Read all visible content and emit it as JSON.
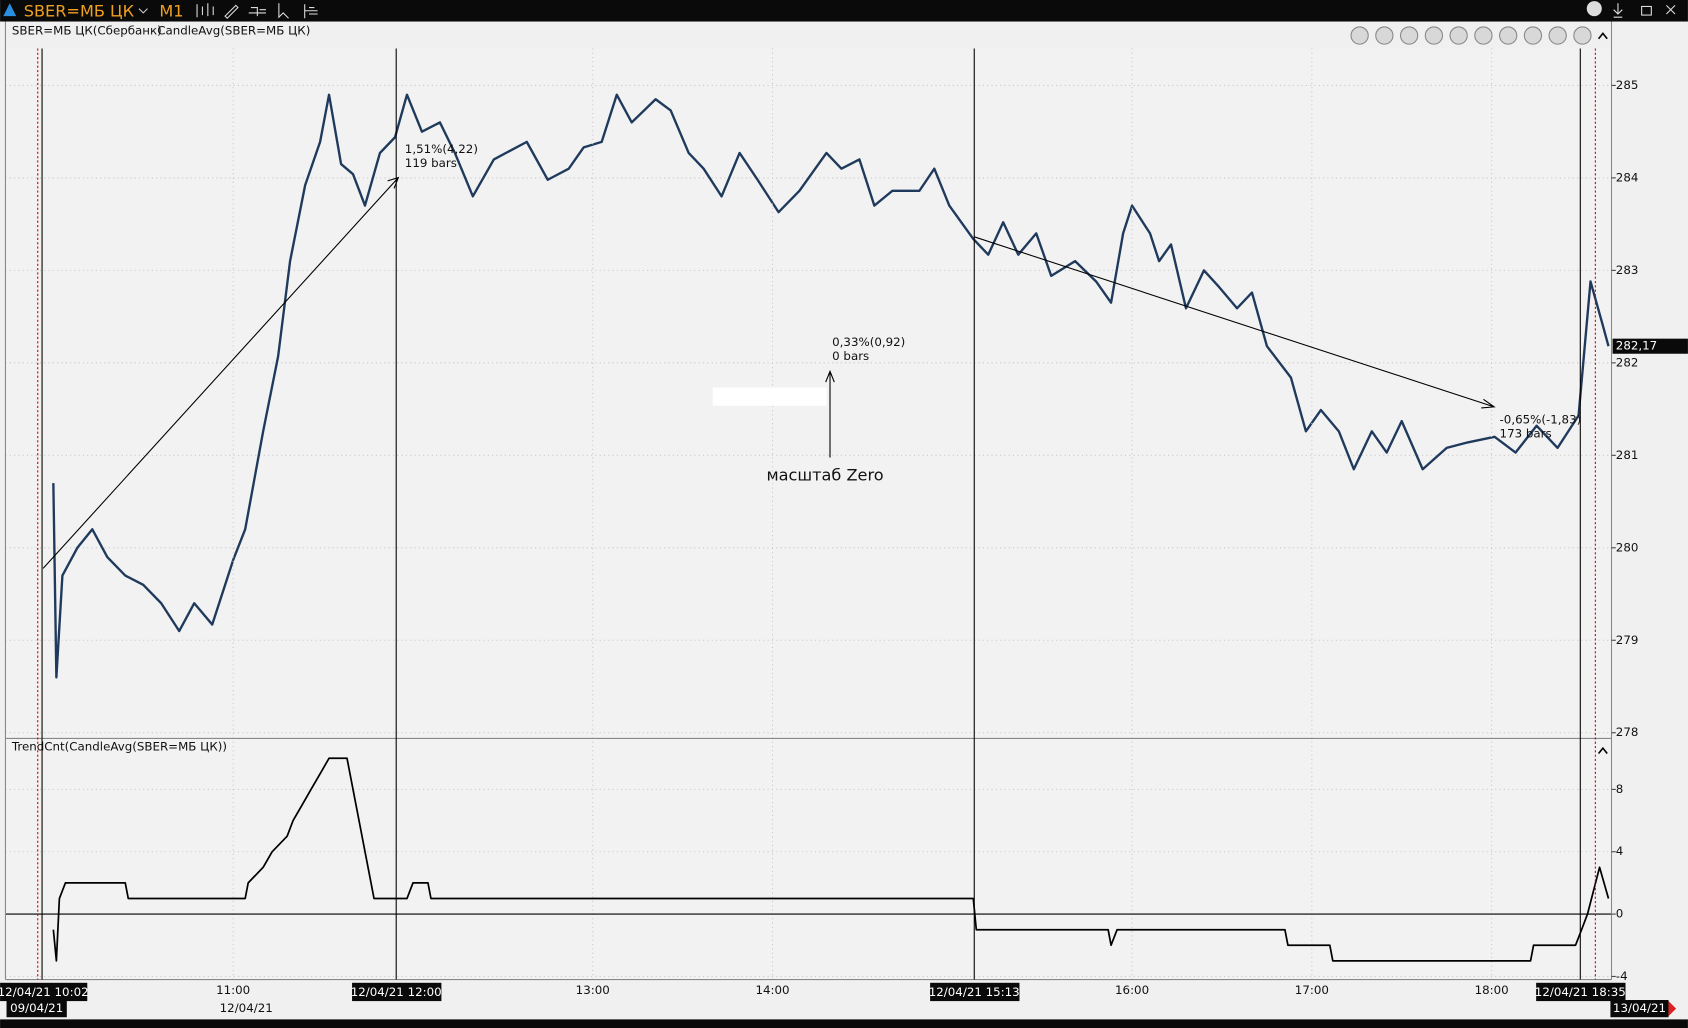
{
  "toolbar": {
    "symbol": "SBER=МБ ЦК",
    "timeframe": "M1"
  },
  "chart_data": [
    {
      "type": "line",
      "title": "SBER=МБ ЦК(Сбербанк)",
      "x": [
        "10:00",
        "10:01",
        "10:03",
        "10:08",
        "10:13",
        "10:18",
        "10:24",
        "10:30",
        "10:36",
        "10:42",
        "10:47",
        "10:53",
        "11:00",
        "11:04",
        "11:10",
        "11:15",
        "11:19",
        "11:24",
        "11:29",
        "11:32",
        "11:36",
        "11:40",
        "11:44",
        "11:49",
        "11:54",
        "11:58",
        "12:03",
        "12:09",
        "12:14",
        "12:20",
        "12:27",
        "12:38",
        "12:45",
        "12:52",
        "12:57",
        "13:03",
        "13:08",
        "13:13",
        "13:21",
        "13:26",
        "13:32",
        "13:37",
        "13:43",
        "13:49",
        "13:55",
        "14:02",
        "14:09",
        "14:18",
        "14:23",
        "14:29",
        "14:34",
        "14:40",
        "14:49",
        "14:54",
        "14:59",
        "15:07",
        "15:12",
        "15:17",
        "15:22",
        "15:28",
        "15:33",
        "15:41",
        "15:48",
        "15:53",
        "15:57",
        "16:00",
        "16:06",
        "16:09",
        "16:13",
        "16:18",
        "16:24",
        "16:29",
        "16:35",
        "16:40",
        "16:45",
        "16:53",
        "16:58",
        "17:03",
        "17:09",
        "17:14",
        "17:20",
        "17:25",
        "17:30",
        "17:37",
        "17:45",
        "17:52",
        "18:01",
        "18:08",
        "18:15",
        "18:22",
        "18:29",
        "18:33",
        "18:37",
        "18:39"
      ],
      "series": [
        {
          "name": "CandleAvg(SBER=МБ ЦК)",
          "color": "#1f3a5c",
          "values": [
            280.7,
            278.6,
            279.7,
            280.0,
            280.2,
            279.9,
            279.7,
            279.6,
            279.4,
            279.1,
            279.4,
            279.17,
            279.87,
            280.2,
            281.26,
            282.07,
            283.1,
            283.92,
            284.39,
            284.9,
            284.15,
            284.04,
            283.7,
            284.27,
            284.44,
            284.9,
            284.5,
            284.6,
            284.27,
            283.8,
            284.2,
            284.39,
            283.98,
            284.1,
            284.33,
            284.39,
            284.9,
            284.6,
            284.85,
            284.73,
            284.27,
            284.1,
            283.8,
            284.27,
            283.98,
            283.63,
            283.86,
            284.27,
            284.1,
            284.2,
            283.7,
            283.86,
            283.86,
            284.1,
            283.7,
            283.34,
            283.17,
            283.52,
            283.17,
            283.4,
            282.94,
            283.1,
            282.88,
            282.65,
            283.4,
            283.7,
            283.4,
            283.1,
            283.28,
            282.59,
            283.0,
            282.82,
            282.59,
            282.76,
            282.18,
            281.84,
            281.26,
            281.49,
            281.26,
            280.85,
            281.26,
            281.03,
            281.37,
            280.85,
            281.08,
            281.14,
            281.2,
            281.03,
            281.32,
            281.08,
            281.43,
            282.88,
            282.42,
            282.18
          ]
        }
      ],
      "last_value_label": "282,17",
      "xlim": [
        "09:44",
        "18:40"
      ],
      "ylim": [
        277.95,
        285.4
      ],
      "yticks": [
        278,
        279,
        280,
        281,
        282,
        283,
        284,
        285
      ],
      "grid": true
    },
    {
      "type": "line",
      "title": "TrendCnt(CandleAvg(SBER=МБ ЦК))",
      "color": "#000000",
      "x": [
        "10:00",
        "10:01",
        "10:02",
        "10:04",
        "10:24",
        "10:25",
        "11:04",
        "11:05",
        "11:10",
        "11:13",
        "11:18",
        "11:20",
        "11:23",
        "11:26",
        "11:29",
        "11:32",
        "11:38",
        "11:47",
        "11:58",
        "12:00",
        "12:05",
        "12:06",
        "15:07",
        "15:08",
        "15:52",
        "15:53",
        "15:55",
        "16:51",
        "16:52",
        "17:06",
        "17:07",
        "18:13",
        "18:14",
        "18:28",
        "18:30",
        "18:32",
        "18:36",
        "18:39"
      ],
      "values": [
        -1,
        -3,
        1,
        2,
        2,
        1,
        1,
        2,
        3,
        4,
        5,
        6,
        7,
        8,
        9,
        10,
        10,
        1,
        1,
        2,
        2,
        1,
        1,
        -1,
        -1,
        -2,
        -1,
        -1,
        -2,
        -2,
        -3,
        -3,
        -2,
        -2,
        -1,
        0,
        3,
        1
      ],
      "xlim": [
        "09:44",
        "18:40"
      ],
      "ylim": [
        -4.2,
        11.2
      ],
      "yticks": [
        -4,
        0,
        4,
        8
      ],
      "xticks": [
        "11:00",
        "13:00",
        "14:00",
        "16:00",
        "17:00",
        "18:00"
      ],
      "grid": true,
      "zero_line": true
    }
  ],
  "annotations": [
    "1,51%(4,22)",
    "119 bars",
    "0,33%(0,92)",
    "0 bars",
    "-0,65%(-1,83)",
    "173 bars",
    "масштаб Zero"
  ],
  "cursor_labels": [
    "12/04/21 10:02",
    "12/04/21 12:00",
    "12/04/21 15:13",
    "12/04/21 18:35"
  ],
  "date_labels": [
    "09/04/21",
    "12/04/21",
    "13/04/21"
  ]
}
